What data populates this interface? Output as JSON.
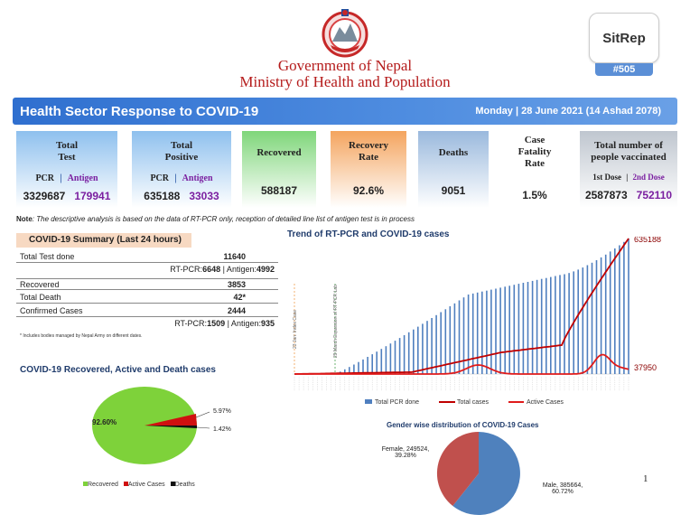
{
  "header": {
    "gov_line1": "Government of Nepal",
    "gov_line2": "Ministry of Health and Population",
    "sitrep_title": "SitRep",
    "sitrep_number": "#505"
  },
  "banner": {
    "title": "Health Sector Response to COVID-19",
    "date": "Monday | 28 June 2021 (14 Ashad 2078)"
  },
  "cards": {
    "total_test": {
      "label1": "Total",
      "label2": "Test",
      "pcr_label": "PCR",
      "sep": "|",
      "antigen_label": "Antigen",
      "pcr": "3329687",
      "antigen": "179941"
    },
    "total_positive": {
      "label1": "Total",
      "label2": "Positive",
      "pcr_label": "PCR",
      "sep": "|",
      "antigen_label": "Antigen",
      "pcr": "635188",
      "antigen": "33033"
    },
    "recovered": {
      "label": "Recovered",
      "value": "588187"
    },
    "recovery_rate": {
      "label1": "Recovery",
      "label2": "Rate",
      "value": "92.6%"
    },
    "deaths": {
      "label": "Deaths",
      "value": "9051"
    },
    "cfr": {
      "label1": "Case",
      "label2": "Fatality",
      "label3": "Rate",
      "value": "1.5%"
    },
    "vaccinated": {
      "label1": "Total number of",
      "label2": "people vaccinated",
      "dose1_label": "1st Dose",
      "sep": "|",
      "dose2_label": "2nd Dose",
      "dose1": "2587873",
      "dose2": "752110"
    }
  },
  "note": {
    "label": "Note",
    "text": ": The descriptive analysis is based on the data of RT-PCR only, reception of detailed line list of antigen test is in process"
  },
  "summary": {
    "title": "COVID-19 Summary (Last 24 hours)",
    "total_test_label": "Total Test done",
    "total_test_value": "11640",
    "test_breakdown_pre": "RT-PCR:",
    "test_pcr": "6648",
    "test_breakdown_mid": " | Antigen:",
    "test_antigen": "4992",
    "recovered_label": "Recovered",
    "recovered_value": "3853",
    "death_label": "Total Death",
    "death_value": "42*",
    "confirmed_label": "Confirmed Cases",
    "confirmed_value": "2444",
    "confirmed_pre": "RT-PCR:",
    "confirmed_pcr": "1509",
    "confirmed_mid": " | Antigen:",
    "confirmed_antigen": "935",
    "footnote": "* Includes bodies managed by Nepal Army on different dates."
  },
  "trend": {
    "title": "Trend of RT-PCR and COVID-19 cases",
    "annot1": "23 Jan: Index Case",
    "annot2": "29 March Expansion of RT-PCR Lab",
    "end_total": "635188",
    "end_active": "37950",
    "legend_total_pcr": "Total PCR done",
    "legend_total_cases": "Total cases",
    "legend_active": "Active Cases",
    "color_bars": "#4f7fbf",
    "color_total": "#c00000",
    "color_active": "#e01b1b"
  },
  "pie_outcome": {
    "title": "COVID-19 Recovered, Active and Death cases",
    "recovered_pct": "92.60%",
    "active_pct": "5.97%",
    "death_pct": "1.42%",
    "legend_recovered": "Recovered",
    "legend_active": "Active Cases",
    "legend_deaths": "Deaths",
    "color_recovered": "#7ed23a",
    "color_active": "#d01010",
    "color_deaths": "#111111"
  },
  "pie_gender": {
    "title": "Gender wise distribution of COVID-19 Cases",
    "female_label": "Female, 249524,",
    "female_pct": "39.28%",
    "male_label": "Male, 385664,",
    "male_pct": "60.72%",
    "color_female": "#c0504d",
    "color_male": "#4f81bd"
  },
  "chart_data": [
    {
      "type": "pie",
      "categories": [
        "Recovered",
        "Active Cases",
        "Deaths"
      ],
      "values": [
        92.6,
        5.97,
        1.42
      ],
      "title": "COVID-19 Recovered, Active and Death cases"
    },
    {
      "type": "pie",
      "categories": [
        "Female",
        "Male"
      ],
      "values": [
        249524,
        385664
      ],
      "percent": [
        39.28,
        60.72
      ],
      "title": "Gender wise distribution of COVID-19 Cases"
    },
    {
      "type": "line",
      "title": "Trend of RT-PCR and COVID-19 cases",
      "series": [
        {
          "name": "Total cases",
          "last": 635188
        },
        {
          "name": "Active Cases",
          "last": 37950
        },
        {
          "name": "Total PCR done"
        }
      ]
    }
  ],
  "page_number": "1"
}
